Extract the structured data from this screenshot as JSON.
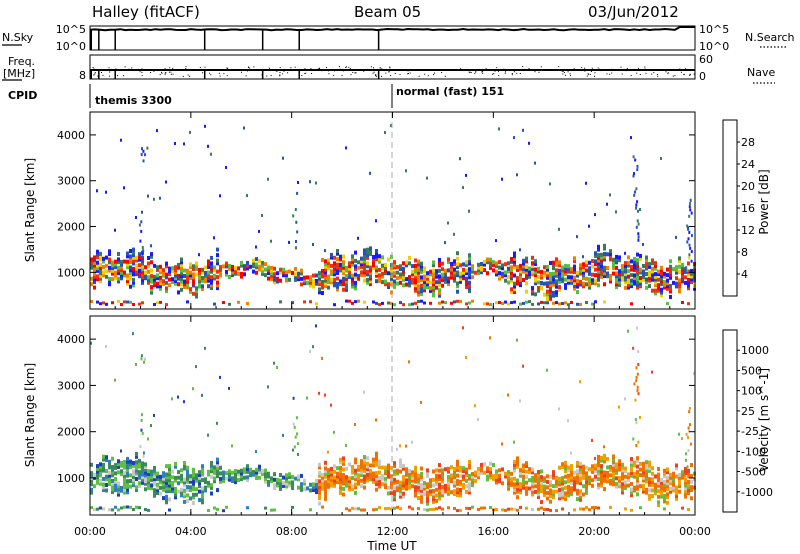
{
  "header": {
    "title": "Halley (fitACF)",
    "beam": "Beam 05",
    "date": "03/Jun/2012"
  },
  "panels": {
    "nsky": {
      "left_label": "N.Sky",
      "right_label": "N.Search",
      "ticks_left": [
        "10^5",
        "10^0"
      ],
      "ticks_right": [
        "10^5",
        "10^0"
      ]
    },
    "freq": {
      "left_label_1": "Freq.",
      "left_label_2": "[MHz]",
      "right_label": "Nave",
      "ticks_left": [
        "8"
      ],
      "ticks_right": [
        "60",
        "0"
      ]
    },
    "cpid": {
      "label": "CPID",
      "mode_1": "themis 3300",
      "mode_2": "normal (fast) 151"
    }
  },
  "x_axis": {
    "title": "Time UT",
    "ticks": [
      "00:00",
      "04:00",
      "08:00",
      "12:00",
      "16:00",
      "20:00",
      "00:00"
    ]
  },
  "chart_data": [
    {
      "type": "heatmap",
      "name": "power",
      "ylabel": "Slant Range [km]",
      "yticks": [
        "1000",
        "2000",
        "3000",
        "4000"
      ],
      "ylim": [
        200,
        4500
      ],
      "xlim_hours": [
        0,
        24
      ],
      "colorbar_label": "Power [dB]",
      "colorbar_ticks": [
        "4",
        "8",
        "12",
        "16",
        "20",
        "24",
        "28"
      ],
      "colorbar_colors": [
        "#1a1aff",
        "#2255bb",
        "#3a7a5a",
        "#56c040",
        "#f2d000",
        "#f08000",
        "#f03010",
        "#ff0000"
      ]
    },
    {
      "type": "heatmap",
      "name": "velocity",
      "ylabel": "Slant Range [km]",
      "yticks": [
        "1000",
        "2000",
        "3000",
        "4000"
      ],
      "ylim": [
        200,
        4500
      ],
      "xlim_hours": [
        0,
        24
      ],
      "colorbar_label": "Velocity [m s^-1]",
      "colorbar_ticks": [
        "1000",
        "500",
        "100",
        "25",
        "-25",
        "-100",
        "-500",
        "-1000"
      ],
      "colorbar_colors": [
        "#1a3fbf",
        "#2f7fbf",
        "#3a8a5a",
        "#5fc040",
        "#c8c8c8",
        "#f0a000",
        "#f07000",
        "#f04020",
        "#ee0000"
      ]
    }
  ]
}
